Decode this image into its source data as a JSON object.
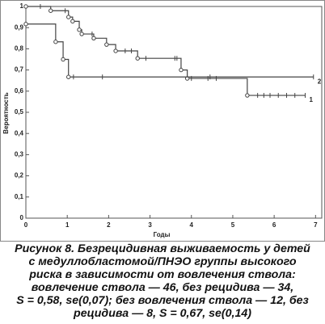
{
  "chart_data": {
    "type": "step",
    "x_label": "Годы",
    "y_label": "Вероятность",
    "xlim": [
      0,
      7.15
    ],
    "ylim": [
      0,
      1
    ],
    "xticks": [
      0,
      1,
      2,
      3,
      4,
      5,
      6,
      7
    ],
    "yticks": [
      0,
      {
        "value": 0.1,
        "label": "0,1"
      },
      {
        "value": 0.2,
        "label": "0,2"
      },
      {
        "value": 0.3,
        "label": "0,3"
      },
      {
        "value": 0.4,
        "label": "0,4"
      },
      {
        "value": 0.5,
        "label": "0,5"
      },
      {
        "value": 0.6,
        "label": "0,6"
      },
      {
        "value": 0.7,
        "label": "0,7"
      },
      {
        "value": 0.8,
        "label": "0,8"
      },
      {
        "value": 0.9,
        "label": "0,9"
      },
      1
    ],
    "series": [
      {
        "label": "1",
        "color": "#444444",
        "x": [
          0,
          0.6,
          1.03,
          1.13,
          1.29,
          1.35,
          1.64,
          1.95,
          2.17,
          2.7,
          3.75,
          3.9,
          5.35
        ],
        "values": [
          1,
          0.98,
          0.95,
          0.93,
          0.89,
          0.87,
          0.85,
          0.82,
          0.79,
          0.755,
          0.7,
          0.66,
          0.58
        ],
        "censored": [
          0.35,
          0.95,
          1.6,
          2.4,
          2.55,
          2.9,
          3.6,
          3.65,
          4.0,
          4.4,
          4.6,
          5.6,
          5.75,
          5.9,
          6.1,
          6.3,
          6.5,
          6.75
        ]
      },
      {
        "label": "2",
        "color": "#444444",
        "x": [
          0,
          0.72,
          0.9,
          1.03
        ],
        "values": [
          0.917,
          0.833,
          0.75,
          0.667
        ],
        "censored": [
          1.15,
          1.85,
          4.45,
          6.95
        ]
      }
    ]
  },
  "caption": {
    "lines": [
      "Рисунок 8. Безрецидивная выживаемость у детей",
      "с медуллобластомой/ПНЭО группы высокого",
      "риска в зависимости от вовлечения ствола:",
      "вовлечение ствола — 46, без рецидива — 34,",
      "S = 0,58, se(0,07); без вовлечения ствола — 12, без",
      "рецидива — 8, S = 0,67, se(0,14)"
    ]
  }
}
